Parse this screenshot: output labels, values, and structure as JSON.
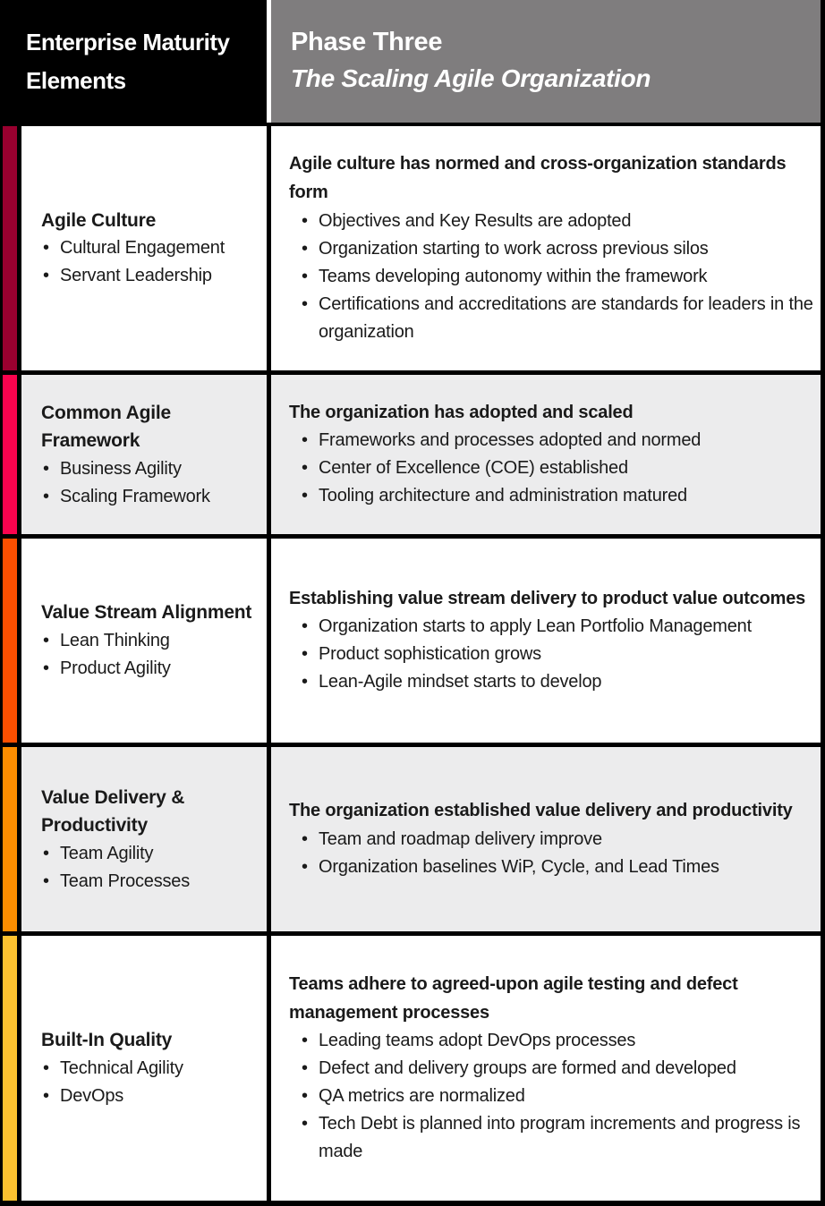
{
  "bullet_char": "•",
  "header": {
    "left_title": "Enterprise Maturity Elements",
    "right_title": "Phase Three",
    "right_subtitle": "The Scaling Agile Organization",
    "left_bg": "#000000",
    "right_bg": "#7F7D7E"
  },
  "rows": [
    {
      "element": "Agile Culture",
      "sub_elements": [
        "Cultural Engagement",
        "Servant Leadership"
      ],
      "stripe_color": "#99002F",
      "background": "#FFFFFF",
      "summary": "Agile culture has normed and cross-organization standards form",
      "details": [
        "Objectives and Key Results are adopted",
        "Organization starting to work across previous silos",
        "Teams developing autonomy within the framework",
        "Certifications and accreditations are standards for leaders in the organization"
      ]
    },
    {
      "element": "Common Agile Framework",
      "sub_elements": [
        "Business Agility",
        "Scaling Framework"
      ],
      "stripe_color": "#F9034E",
      "background": "#ECECED",
      "summary": "The organization has adopted and scaled",
      "details": [
        "Frameworks and processes adopted and normed",
        "Center of Excellence (COE) established",
        "Tooling architecture and administration matured"
      ]
    },
    {
      "element": "Value Stream Alignment",
      "sub_elements": [
        "Lean Thinking",
        "Product Agility"
      ],
      "stripe_color": "#FB4F00",
      "background": "#FFFFFF",
      "summary": "Establishing value stream delivery to product value outcomes",
      "details": [
        "Organization starts to apply Lean Portfolio Management",
        "Product sophistication grows",
        "Lean-Agile mindset starts to develop"
      ]
    },
    {
      "element": "Value Delivery & Productivity",
      "sub_elements": [
        "Team Agility",
        "Team Processes"
      ],
      "stripe_color": "#FB8D00",
      "background": "#ECECED",
      "summary": "The organization established value delivery and productivity",
      "details": [
        "Team and roadmap delivery improve",
        "Organization baselines WiP, Cycle, and Lead Times"
      ]
    },
    {
      "element": "Built-In Quality",
      "sub_elements": [
        "Technical Agility",
        "DevOps"
      ],
      "stripe_color": "#FCC230",
      "background": "#FFFFFF",
      "summary": "Teams adhere to agreed-upon agile testing and defect management processes",
      "details": [
        "Leading teams adopt DevOps processes",
        "Defect and delivery groups are formed and developed",
        "QA metrics are normalized",
        "Tech Debt is planned into program increments and progress is made"
      ]
    }
  ]
}
